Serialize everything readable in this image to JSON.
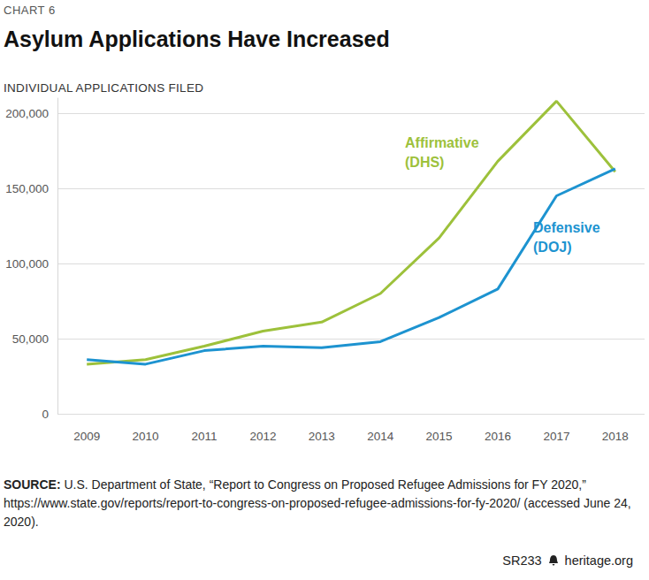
{
  "chart_data": {
    "type": "line",
    "chart_label": "CHART 6",
    "title": "Asylum Applications Have Increased",
    "subtitle": "INDIVIDUAL APPLICATIONS FILED",
    "source_label": "SOURCE:",
    "source": "U.S. Department of State, “Report to Congress on Proposed Refugee Admissions for FY 2020,” https://www.state.gov/reports/report-to-congress-on-proposed-refugee-admissions-for-fy-2020/ (accessed June 24, 2020).",
    "footer_code": "SR233",
    "footer_site": "heritage.org",
    "categories": [
      "2009",
      "2010",
      "2011",
      "2012",
      "2013",
      "2014",
      "2015",
      "2016",
      "2017",
      "2018"
    ],
    "series": [
      {
        "name": "Affirmative (DHS)",
        "color": "#9dc13b",
        "values": [
          33000,
          36000,
          45000,
          55000,
          61000,
          80000,
          117000,
          168000,
          208000,
          161000
        ]
      },
      {
        "name": "Defensive (DOJ)",
        "color": "#1d93d0",
        "values": [
          36000,
          33000,
          42000,
          45000,
          44000,
          48000,
          64000,
          83000,
          145000,
          163000
        ]
      }
    ],
    "ylim": [
      0,
      210000
    ],
    "yticks": [
      0,
      {
        "value": 50000,
        "label": "50,000"
      },
      {
        "value": 100000,
        "label": "100,000"
      },
      {
        "value": 150000,
        "label": "150,000"
      },
      {
        "value": 200000,
        "label": "200,000"
      }
    ],
    "grid": true
  }
}
